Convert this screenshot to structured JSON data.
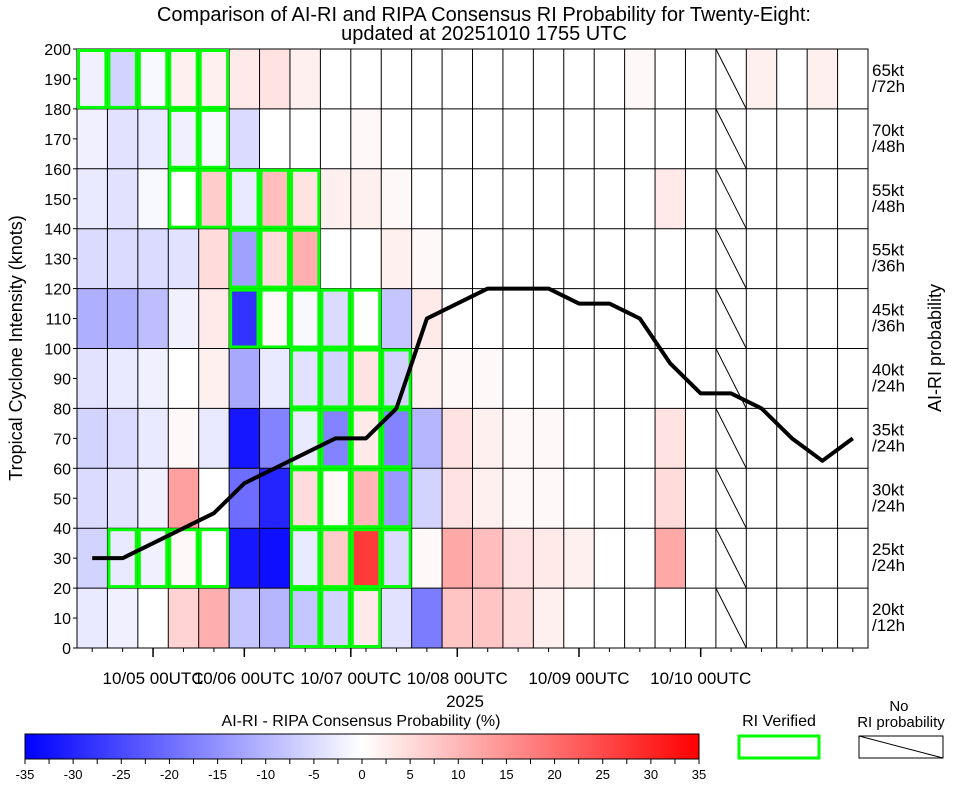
{
  "chart_data": {
    "type": "heatmap",
    "title": "Comparison of AI-RI and RIPA Consensus RI Probability for Twenty-Eight:",
    "subtitle": "updated at 20251010 1755 UTC",
    "ylabel": "Tropical Cyclone Intensity (knots)",
    "y2label": "AI-RI probability",
    "xlabel": "2025",
    "ylim": [
      0,
      200
    ],
    "y_ticks": [
      0,
      10,
      20,
      30,
      40,
      50,
      60,
      70,
      80,
      90,
      100,
      110,
      120,
      130,
      140,
      150,
      160,
      170,
      180,
      190,
      200
    ],
    "x_ticks": [
      "10/05 00UTC",
      "10/06 00UTC",
      "10/07 00UTC",
      "10/08 00UTC",
      "10/09 00UTC",
      "10/10 00UTC"
    ],
    "n_times": 26,
    "x_tick_columns": [
      2.5,
      5.5,
      9,
      12.5,
      16.5,
      20.5
    ],
    "thresholds": [
      {
        "label": "20kt /12h",
        "ymin": 0,
        "ymax": 20
      },
      {
        "label": "25kt /24h",
        "ymin": 20,
        "ymax": 40
      },
      {
        "label": "30kt /24h",
        "ymin": 40,
        "ymax": 60
      },
      {
        "label": "35kt /24h",
        "ymin": 60,
        "ymax": 80
      },
      {
        "label": "40kt /24h",
        "ymin": 80,
        "ymax": 100
      },
      {
        "label": "45kt /36h",
        "ymin": 100,
        "ymax": 120
      },
      {
        "label": "55kt /36h",
        "ymin": 120,
        "ymax": 140
      },
      {
        "label": "55kt /48h",
        "ymin": 140,
        "ymax": 160
      },
      {
        "label": "70kt /48h",
        "ymin": 160,
        "ymax": 180
      },
      {
        "label": "65kt /72h",
        "ymin": 180,
        "ymax": 200
      }
    ],
    "probability_diff": [
      [
        -3,
        -2,
        0,
        6,
        11,
        -8,
        -10,
        -8,
        -6,
        3,
        -4,
        -18,
        8,
        8,
        5,
        2,
        0,
        0,
        0,
        0,
        0,
        0,
        0,
        0,
        0,
        0
      ],
      [
        -6,
        -3,
        -2,
        1,
        0,
        -32,
        -33,
        -3,
        7,
        27,
        -5,
        1,
        12,
        9,
        4,
        3,
        2,
        0,
        0,
        12,
        0,
        0,
        0,
        0,
        0,
        0
      ],
      [
        -5,
        -4,
        -2,
        13,
        0,
        -20,
        -30,
        5,
        1,
        10,
        -14,
        -6,
        4,
        2,
        1,
        1,
        0,
        0,
        0,
        5,
        0,
        0,
        0,
        0,
        0,
        0
      ],
      [
        -6,
        -5,
        -3,
        1,
        -3,
        -32,
        -17,
        -3,
        -17,
        3,
        -17,
        -10,
        4,
        2,
        1,
        1,
        0,
        0,
        0,
        4,
        0,
        0,
        0,
        0,
        0,
        0
      ],
      [
        -4,
        -3,
        -2,
        0,
        2,
        -12,
        -3,
        -4,
        -6,
        4,
        -6,
        2,
        1,
        1,
        0,
        0,
        0,
        0,
        0,
        0,
        0,
        0,
        0,
        0,
        0,
        0
      ],
      [
        -11,
        -11,
        -9,
        -2,
        3,
        -28,
        1,
        -1,
        -5,
        0,
        -8,
        3,
        0,
        0,
        0,
        0,
        0,
        0,
        0,
        0,
        0,
        0,
        0,
        0,
        0,
        0
      ],
      [
        -5,
        -5,
        -5,
        -4,
        5,
        -13,
        5,
        11,
        0,
        0,
        2,
        1,
        0,
        0,
        0,
        0,
        0,
        0,
        0,
        0,
        0,
        0,
        0,
        0,
        0,
        0
      ],
      [
        -3,
        -4,
        -1,
        0,
        7,
        -3,
        9,
        4,
        2,
        2,
        1,
        0,
        0,
        0,
        0,
        0,
        0,
        0,
        0,
        3,
        0,
        0,
        0,
        0,
        0,
        0
      ],
      [
        -2,
        -4,
        -3,
        -2,
        -1,
        -5,
        0,
        0,
        0,
        1,
        0,
        0,
        0,
        0,
        0,
        0,
        0,
        0,
        0,
        0,
        0,
        0,
        0,
        0,
        0,
        0
      ],
      [
        -2,
        -6,
        -1,
        2,
        2,
        3,
        4,
        2,
        0,
        0,
        0,
        0,
        0,
        0,
        0,
        0,
        0,
        0,
        1,
        0,
        0,
        0,
        2,
        0,
        2,
        0
      ]
    ],
    "no_ri_columns": [
      21
    ],
    "ri_verified": [
      [
        0,
        7
      ],
      [
        0,
        8
      ],
      [
        0,
        9
      ],
      [
        1,
        1
      ],
      [
        1,
        2
      ],
      [
        1,
        3
      ],
      [
        1,
        4
      ],
      [
        1,
        7
      ],
      [
        1,
        8
      ],
      [
        1,
        9
      ],
      [
        1,
        10
      ],
      [
        2,
        7
      ],
      [
        2,
        8
      ],
      [
        2,
        9
      ],
      [
        2,
        10
      ],
      [
        3,
        7
      ],
      [
        3,
        8
      ],
      [
        3,
        9
      ],
      [
        3,
        10
      ],
      [
        4,
        7
      ],
      [
        4,
        8
      ],
      [
        4,
        9
      ],
      [
        4,
        10
      ],
      [
        5,
        5
      ],
      [
        5,
        6
      ],
      [
        5,
        7
      ],
      [
        5,
        8
      ],
      [
        5,
        9
      ],
      [
        6,
        5
      ],
      [
        6,
        6
      ],
      [
        6,
        7
      ],
      [
        7,
        3
      ],
      [
        7,
        4
      ],
      [
        7,
        5
      ],
      [
        7,
        6
      ],
      [
        7,
        7
      ],
      [
        8,
        3
      ],
      [
        8,
        4
      ],
      [
        9,
        0
      ],
      [
        9,
        1
      ],
      [
        9,
        2
      ],
      [
        9,
        3
      ],
      [
        9,
        4
      ]
    ],
    "intensity_track": {
      "x": [
        0.5,
        1.5,
        2.5,
        3.5,
        4.5,
        5.5,
        6.5,
        7.5,
        8.5,
        9.5,
        10.5,
        11.5,
        12.5,
        13.5,
        14.5,
        15.5,
        16.5,
        17.5,
        18.5,
        19.5,
        20.5,
        21.5,
        22.5,
        23.5,
        24.5,
        25.5
      ],
      "y": [
        30,
        30,
        35,
        40,
        45,
        55,
        60,
        65,
        70,
        70,
        80,
        110,
        115,
        120,
        120,
        120,
        115,
        115,
        110,
        95,
        85,
        85,
        80,
        70,
        62.5,
        70
      ]
    },
    "colorbar": {
      "label": "AI-RI - RIPA Consensus Probability (%)",
      "min": -35,
      "max": 35,
      "ticks": [
        -35,
        -30,
        -25,
        -20,
        -15,
        -10,
        -5,
        0,
        5,
        10,
        15,
        20,
        25,
        30,
        35
      ]
    },
    "legend": {
      "verified_label": "RI Verified",
      "no_ri_label": "No RI probability"
    }
  }
}
